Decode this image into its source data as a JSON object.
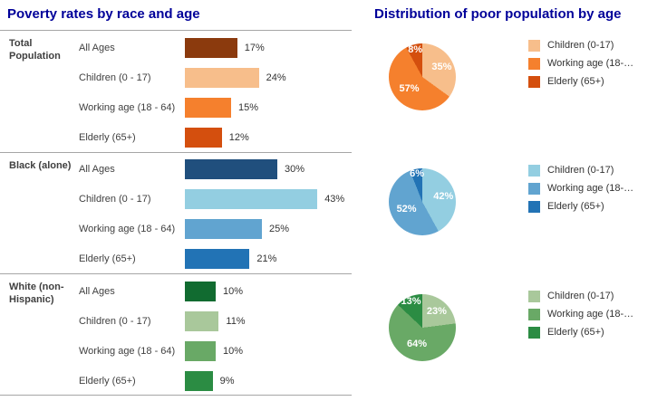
{
  "chart_data": [
    {
      "type": "bar",
      "orientation": "horizontal",
      "title": "Poverty rates by race and age",
      "value_suffix": "%",
      "categories": [
        "All Ages",
        "Children (0 - 17)",
        "Working age (18 - 64)",
        "Elderly (65+)"
      ],
      "series": [
        {
          "name": "Total Population",
          "values": [
            17,
            24,
            15,
            12
          ],
          "colors": [
            "#8B3A0D",
            "#F7BE8B",
            "#F5802D",
            "#D44F0E"
          ]
        },
        {
          "name": "Black (alone)",
          "values": [
            30,
            43,
            25,
            21
          ],
          "colors": [
            "#204F7D",
            "#93CEE1",
            "#61A4D0",
            "#2273B5"
          ]
        },
        {
          "name": "White (non-Hispanic)",
          "values": [
            10,
            11,
            10,
            9
          ],
          "colors": [
            "#116B30",
            "#A9C89B",
            "#69A966",
            "#2B8C43"
          ]
        }
      ],
      "axis_ticks_visible": false,
      "grid": false
    },
    {
      "type": "pie",
      "title": "Distribution of poor population by age",
      "legend_position": "right",
      "legend_labels": [
        "Children (0-17)",
        "Working age (18-…",
        "Elderly (65+)"
      ],
      "value_suffix": "%",
      "charts": [
        {
          "group": "Total Population",
          "values": [
            35,
            57,
            8
          ],
          "colors": [
            "#F7BE8B",
            "#F5802D",
            "#D44F0E"
          ]
        },
        {
          "group": "Black (alone)",
          "values": [
            42,
            52,
            6
          ],
          "colors": [
            "#93CEE1",
            "#61A4D0",
            "#2273B5"
          ]
        },
        {
          "group": "White (non-Hispanic)",
          "values": [
            23,
            64,
            13
          ],
          "colors": [
            "#A9C89B",
            "#69A966",
            "#2B8C43"
          ]
        }
      ]
    }
  ],
  "accent_colors": {
    "title_navy": "#000099",
    "divider_gray": "#A6A6A6",
    "label_gray": "#404040"
  }
}
